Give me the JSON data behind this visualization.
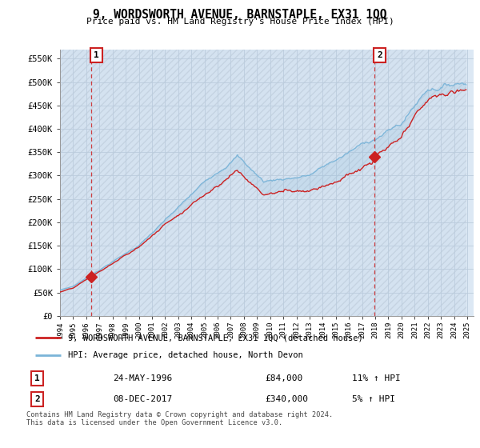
{
  "title": "9, WORDSWORTH AVENUE, BARNSTAPLE, EX31 1QQ",
  "subtitle": "Price paid vs. HM Land Registry's House Price Index (HPI)",
  "ylim": [
    0,
    570000
  ],
  "yticks": [
    0,
    50000,
    100000,
    150000,
    200000,
    250000,
    300000,
    350000,
    400000,
    450000,
    500000,
    550000
  ],
  "ytick_labels": [
    "£0",
    "£50K",
    "£100K",
    "£150K",
    "£200K",
    "£250K",
    "£300K",
    "£350K",
    "£400K",
    "£450K",
    "£500K",
    "£550K"
  ],
  "sale1_year": 1996.38,
  "sale1_price": 84000,
  "sale2_year": 2017.92,
  "sale2_price": 340000,
  "legend_line1": "9, WORDSWORTH AVENUE, BARNSTAPLE, EX31 1QQ (detached house)",
  "legend_line2": "HPI: Average price, detached house, North Devon",
  "table_row1": [
    "1",
    "24-MAY-1996",
    "£84,000",
    "11% ↑ HPI"
  ],
  "table_row2": [
    "2",
    "08-DEC-2017",
    "£340,000",
    "5% ↑ HPI"
  ],
  "footnote": "Contains HM Land Registry data © Crown copyright and database right 2024.\nThis data is licensed under the Open Government Licence v3.0.",
  "hpi_color": "#7ab4d8",
  "sale_color": "#cc2222",
  "grid_color": "#bbccdd",
  "bg_color": "#dce8f4",
  "hatch_bg": "#ccdcec"
}
